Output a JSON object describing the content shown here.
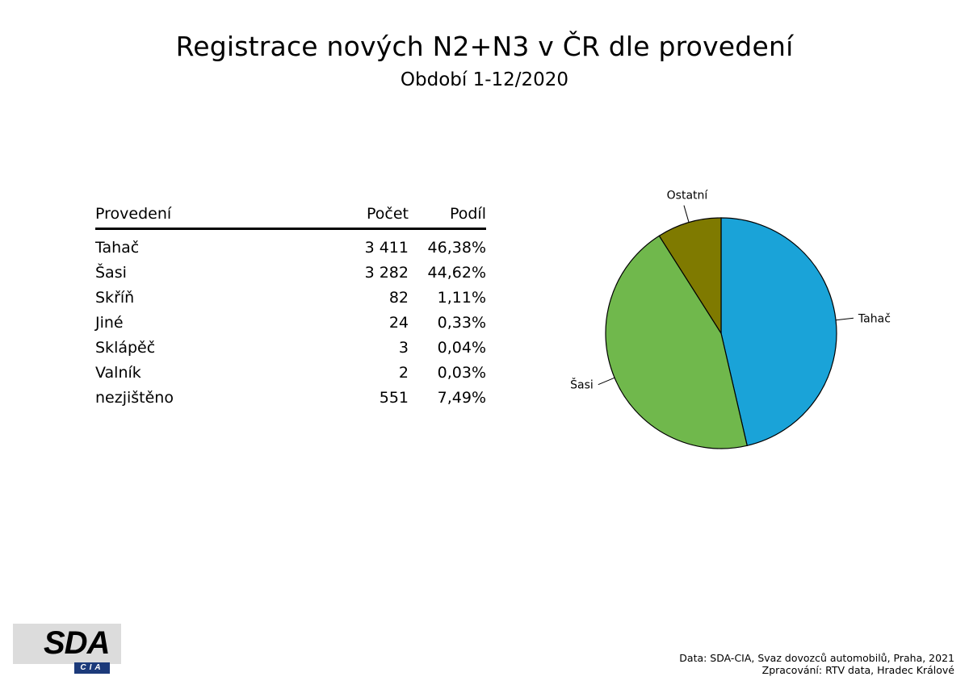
{
  "title": "Registrace nových N2+N3 v ČR dle provedení",
  "subtitle": "Období 1-12/2020",
  "table": {
    "headers": [
      "Provedení",
      "Počet",
      "Podíl"
    ],
    "rows": [
      [
        "Tahač",
        "3 411",
        "46,38%"
      ],
      [
        "Šasi",
        "3 282",
        "44,62%"
      ],
      [
        "Skříň",
        "82",
        "1,11%"
      ],
      [
        "Jiné",
        "24",
        "0,33%"
      ],
      [
        "Sklápěč",
        "3",
        "0,04%"
      ],
      [
        "Valník",
        "2",
        "0,03%"
      ],
      [
        "nezjištěno",
        "551",
        "7,49%"
      ]
    ]
  },
  "chart_data": {
    "type": "pie",
    "categories": [
      "Tahač",
      "Šasi",
      "Ostatní"
    ],
    "values": [
      46.38,
      44.62,
      9.0
    ],
    "colors": [
      "#1aa3d8",
      "#70b84c",
      "#7f7a00"
    ],
    "start": "12 o'clock",
    "direction": "clockwise",
    "legend": "none"
  },
  "logo": {
    "main": "SDA",
    "sub": "CIA"
  },
  "source": {
    "line1": "Data: SDA-CIA, Svaz dovozců automobilů, Praha, 2021",
    "line2": "Zpracování: RTV data, Hradec Králové"
  }
}
